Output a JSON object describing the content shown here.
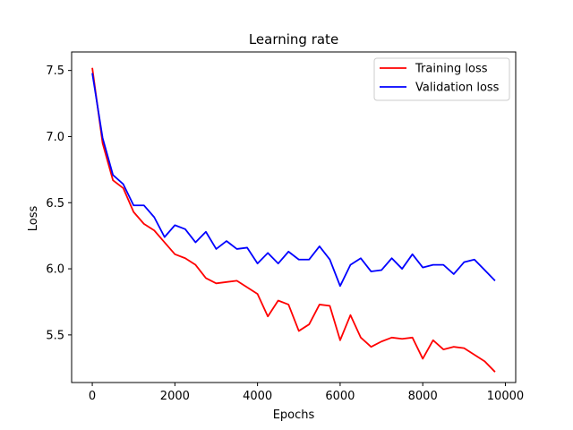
{
  "chart_data": {
    "type": "line",
    "title": "Learning rate",
    "xlabel": "Epochs",
    "ylabel": "Loss",
    "xlim": [
      -500,
      10250
    ],
    "ylim": [
      5.14,
      7.64
    ],
    "xticks": [
      0,
      2000,
      4000,
      6000,
      8000,
      10000
    ],
    "xtick_labels": [
      "0",
      "2000",
      "4000",
      "6000",
      "8000",
      "10000"
    ],
    "yticks": [
      5.5,
      6.0,
      6.5,
      7.0,
      7.5
    ],
    "ytick_labels": [
      "5.5",
      "6.0",
      "6.5",
      "7.0",
      "7.5"
    ],
    "grid": false,
    "legend_position": "top-right",
    "x": [
      0,
      250,
      500,
      750,
      1000,
      1250,
      1500,
      1750,
      2000,
      2250,
      2500,
      2750,
      3000,
      3250,
      3500,
      3750,
      4000,
      4250,
      4500,
      4750,
      5000,
      5250,
      5500,
      5750,
      6000,
      6250,
      6500,
      6750,
      7000,
      7250,
      7500,
      7750,
      8000,
      8250,
      8500,
      8750,
      9000,
      9250,
      9500,
      9750
    ],
    "series": [
      {
        "name": "Training loss",
        "color": "#ff0000",
        "values": [
          7.52,
          6.95,
          6.67,
          6.61,
          6.43,
          6.34,
          6.29,
          6.2,
          6.11,
          6.08,
          6.03,
          5.93,
          5.89,
          5.9,
          5.91,
          5.86,
          5.81,
          5.64,
          5.76,
          5.73,
          5.53,
          5.58,
          5.73,
          5.72,
          5.46,
          5.65,
          5.48,
          5.41,
          5.45,
          5.48,
          5.47,
          5.48,
          5.32,
          5.46,
          5.39,
          5.41,
          5.4,
          5.35,
          5.3,
          5.22
        ]
      },
      {
        "name": "Validation loss",
        "color": "#0000ff",
        "values": [
          7.48,
          6.99,
          6.71,
          6.64,
          6.48,
          6.48,
          6.39,
          6.24,
          6.33,
          6.3,
          6.2,
          6.28,
          6.15,
          6.21,
          6.15,
          6.16,
          6.04,
          6.12,
          6.04,
          6.13,
          6.07,
          6.07,
          6.17,
          6.07,
          5.87,
          6.03,
          6.08,
          5.98,
          5.99,
          6.08,
          6.0,
          6.11,
          6.01,
          6.03,
          6.03,
          5.96,
          6.05,
          6.07,
          5.99,
          5.91
        ]
      }
    ]
  }
}
